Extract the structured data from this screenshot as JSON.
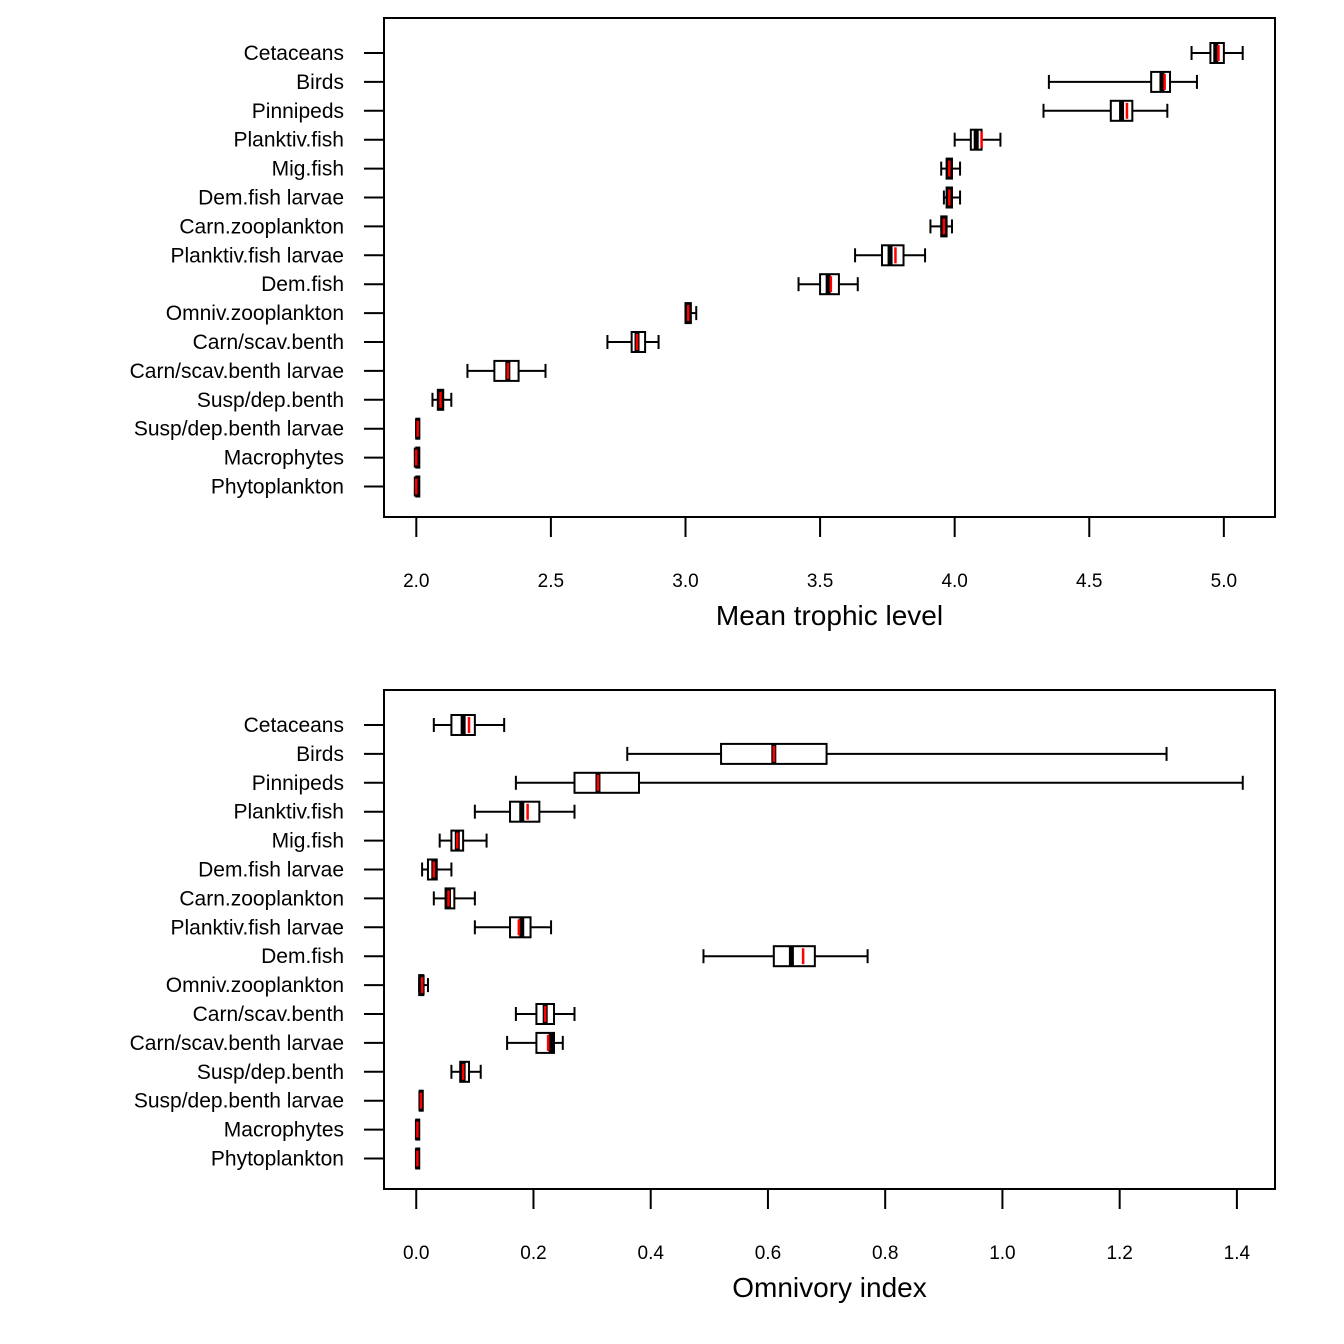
{
  "chart_data": [
    {
      "type": "boxplot",
      "orientation": "horizontal",
      "title": "",
      "xlabel": "Mean trophic level",
      "ylabel": "",
      "xlim": [
        1.88,
        5.19
      ],
      "xticks": [
        2.0,
        2.5,
        3.0,
        3.5,
        4.0,
        4.5,
        5.0
      ],
      "xtick_labels": [
        "2.0",
        "2.5",
        "3.0",
        "3.5",
        "4.0",
        "4.5",
        "5.0"
      ],
      "median_color": "#000000",
      "mean_color": "#ff0000",
      "grid": false,
      "categories": [
        "Cetaceans",
        "Birds",
        "Pinnipeds",
        "Planktiv.fish",
        "Mig.fish",
        "Dem.fish larvae",
        "Carn.zooplankton",
        "Planktiv.fish larvae",
        "Dem.fish",
        "Omniv.zooplankton",
        "Carn/scav.benth",
        "Carn/scav.benth larvae",
        "Susp/dep.benth",
        "Susp/dep.benth larvae",
        "Macrophytes",
        "Phytoplankton"
      ],
      "boxes": [
        {
          "min": 4.88,
          "q1": 4.95,
          "median": 4.97,
          "q3": 5.0,
          "max": 5.07,
          "mean": 4.98
        },
        {
          "min": 4.35,
          "q1": 4.73,
          "median": 4.77,
          "q3": 4.8,
          "max": 4.9,
          "mean": 4.78
        },
        {
          "min": 4.33,
          "q1": 4.58,
          "median": 4.62,
          "q3": 4.66,
          "max": 4.79,
          "mean": 4.64
        },
        {
          "min": 4.0,
          "q1": 4.06,
          "median": 4.08,
          "q3": 4.1,
          "max": 4.17,
          "mean": 4.1
        },
        {
          "min": 3.95,
          "q1": 3.97,
          "median": 3.98,
          "q3": 3.99,
          "max": 4.02,
          "mean": 3.98
        },
        {
          "min": 3.96,
          "q1": 3.97,
          "median": 3.98,
          "q3": 3.99,
          "max": 4.02,
          "mean": 3.98
        },
        {
          "min": 3.91,
          "q1": 3.95,
          "median": 3.96,
          "q3": 3.97,
          "max": 3.99,
          "mean": 3.96
        },
        {
          "min": 3.63,
          "q1": 3.73,
          "median": 3.76,
          "q3": 3.81,
          "max": 3.89,
          "mean": 3.78
        },
        {
          "min": 3.42,
          "q1": 3.5,
          "median": 3.53,
          "q3": 3.57,
          "max": 3.64,
          "mean": 3.54
        },
        {
          "min": 3.0,
          "q1": 3.0,
          "median": 3.01,
          "q3": 3.02,
          "max": 3.04,
          "mean": 3.01
        },
        {
          "min": 2.71,
          "q1": 2.8,
          "median": 2.82,
          "q3": 2.85,
          "max": 2.9,
          "mean": 2.82
        },
        {
          "min": 2.19,
          "q1": 2.29,
          "median": 2.34,
          "q3": 2.38,
          "max": 2.48,
          "mean": 2.34
        },
        {
          "min": 2.06,
          "q1": 2.08,
          "median": 2.09,
          "q3": 2.1,
          "max": 2.13,
          "mean": 2.09
        },
        {
          "min": 2.0,
          "q1": 2.0,
          "median": 2.005,
          "q3": 2.01,
          "max": 2.01,
          "mean": 2.005
        },
        {
          "min": 2.0,
          "q1": 2.0,
          "median": 2.0,
          "q3": 2.005,
          "max": 2.005,
          "mean": 2.0
        },
        {
          "min": 2.0,
          "q1": 2.0,
          "median": 2.0,
          "q3": 2.005,
          "max": 2.005,
          "mean": 2.0
        }
      ]
    },
    {
      "type": "boxplot",
      "orientation": "horizontal",
      "title": "",
      "xlabel": "Omnivory index",
      "ylabel": "",
      "xlim": [
        -0.055,
        1.465
      ],
      "xticks": [
        0.0,
        0.2,
        0.4,
        0.6,
        0.8,
        1.0,
        1.2,
        1.4
      ],
      "xtick_labels": [
        "0.0",
        "0.2",
        "0.4",
        "0.6",
        "0.8",
        "1.0",
        "1.2",
        "1.4"
      ],
      "median_color": "#000000",
      "mean_color": "#ff0000",
      "grid": false,
      "categories": [
        "Cetaceans",
        "Birds",
        "Pinnipeds",
        "Planktiv.fish",
        "Mig.fish",
        "Dem.fish larvae",
        "Carn.zooplankton",
        "Planktiv.fish larvae",
        "Dem.fish",
        "Omniv.zooplankton",
        "Carn/scav.benth",
        "Carn/scav.benth larvae",
        "Susp/dep.benth",
        "Susp/dep.benth larvae",
        "Macrophytes",
        "Phytoplankton"
      ],
      "boxes": [
        {
          "min": 0.03,
          "q1": 0.06,
          "median": 0.08,
          "q3": 0.1,
          "max": 0.15,
          "mean": 0.09
        },
        {
          "min": 0.36,
          "q1": 0.52,
          "median": 0.61,
          "q3": 0.7,
          "max": 1.28,
          "mean": 0.61
        },
        {
          "min": 0.17,
          "q1": 0.27,
          "median": 0.31,
          "q3": 0.38,
          "max": 1.41,
          "mean": 0.31
        },
        {
          "min": 0.1,
          "q1": 0.16,
          "median": 0.18,
          "q3": 0.21,
          "max": 0.27,
          "mean": 0.19
        },
        {
          "min": 0.04,
          "q1": 0.06,
          "median": 0.07,
          "q3": 0.08,
          "max": 0.12,
          "mean": 0.07
        },
        {
          "min": 0.01,
          "q1": 0.02,
          "median": 0.03,
          "q3": 0.035,
          "max": 0.06,
          "mean": 0.03
        },
        {
          "min": 0.03,
          "q1": 0.05,
          "median": 0.055,
          "q3": 0.065,
          "max": 0.1,
          "mean": 0.055
        },
        {
          "min": 0.1,
          "q1": 0.16,
          "median": 0.18,
          "q3": 0.195,
          "max": 0.23,
          "mean": 0.175
        },
        {
          "min": 0.49,
          "q1": 0.61,
          "median": 0.64,
          "q3": 0.68,
          "max": 0.77,
          "mean": 0.66
        },
        {
          "min": 0.005,
          "q1": 0.005,
          "median": 0.01,
          "q3": 0.012,
          "max": 0.02,
          "mean": 0.01
        },
        {
          "min": 0.17,
          "q1": 0.205,
          "median": 0.22,
          "q3": 0.235,
          "max": 0.27,
          "mean": 0.22
        },
        {
          "min": 0.155,
          "q1": 0.205,
          "median": 0.23,
          "q3": 0.235,
          "max": 0.25,
          "mean": 0.225
        },
        {
          "min": 0.06,
          "q1": 0.075,
          "median": 0.08,
          "q3": 0.09,
          "max": 0.11,
          "mean": 0.08
        },
        {
          "min": 0.006,
          "q1": 0.006,
          "median": 0.008,
          "q3": 0.01,
          "max": 0.01,
          "mean": 0.008
        },
        {
          "min": 0.0,
          "q1": 0.0,
          "median": 0.002,
          "q3": 0.004,
          "max": 0.004,
          "mean": 0.002
        },
        {
          "min": 0.0,
          "q1": 0.0,
          "median": 0.002,
          "q3": 0.004,
          "max": 0.004,
          "mean": 0.002
        }
      ]
    }
  ]
}
